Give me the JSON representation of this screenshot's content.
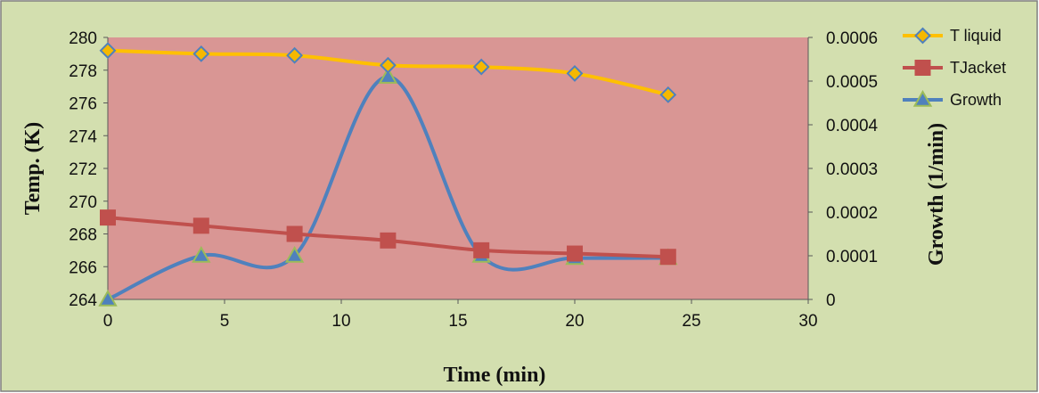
{
  "chart_data": {
    "type": "line",
    "xlabel": "Time (min)",
    "ylabel": "Temp. (K)",
    "y2label": "Growth (1/min)",
    "xlim": [
      0,
      30
    ],
    "ylim": [
      264,
      280
    ],
    "y2lim": [
      0,
      0.0006
    ],
    "xticks": [
      "0",
      "5",
      "10",
      "15",
      "20",
      "25",
      "30"
    ],
    "yticks": [
      "264",
      "266",
      "268",
      "270",
      "272",
      "274",
      "276",
      "278",
      "280"
    ],
    "y2ticks": [
      "0",
      "0.0001",
      "0.0002",
      "0.0003",
      "0.0004",
      "0.0005",
      "0.0006"
    ],
    "x": [
      0,
      4,
      8,
      12,
      16,
      20,
      24
    ],
    "series": [
      {
        "name": "T liquid",
        "axis": "left",
        "marker": "diamond",
        "color": "#FFC000",
        "marker_fill": "#F5B800",
        "marker_stroke": "#4F81BD",
        "values": [
          279.2,
          279.0,
          278.9,
          278.3,
          278.2,
          277.8,
          276.5
        ]
      },
      {
        "name": "TJacket",
        "axis": "left",
        "marker": "square",
        "color": "#C0504D",
        "marker_fill": "#C0504D",
        "marker_stroke": "#C0504D",
        "values": [
          269.0,
          268.5,
          268.0,
          267.6,
          267.0,
          266.8,
          266.6
        ]
      },
      {
        "name": "Growth",
        "axis": "right",
        "marker": "triangle",
        "color": "#4F81BD",
        "marker_fill": "#4F81BD",
        "marker_stroke": "#9BBB59",
        "values": [
          0,
          0.0001,
          0.0001,
          0.00051,
          0.0001,
          9.5e-05,
          9.5e-05
        ]
      }
    ],
    "grid": false,
    "legend": "right",
    "colors": {
      "chart_background": "#D3DFAF",
      "plot_background": "#D99694",
      "border": "#7F7F7F"
    }
  }
}
